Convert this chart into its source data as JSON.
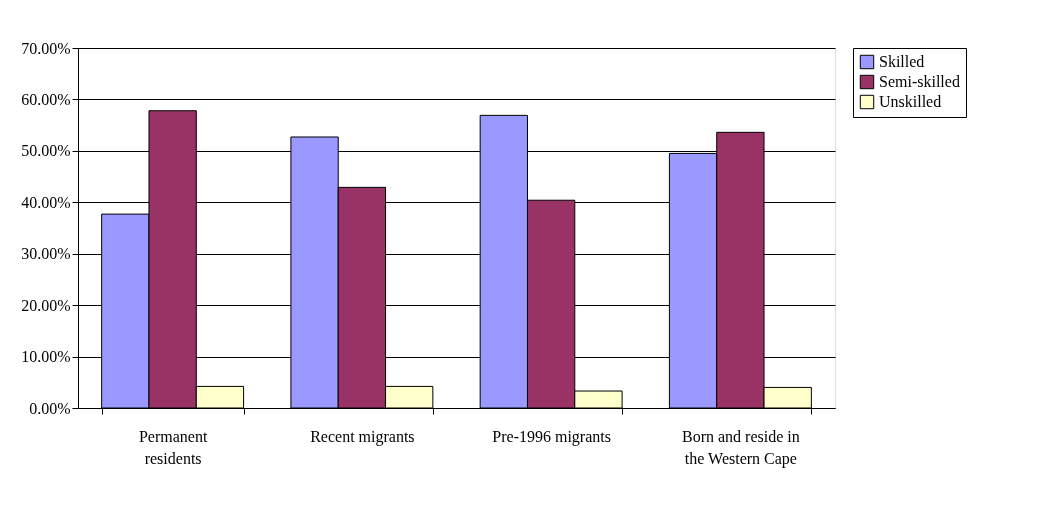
{
  "chart_data": {
    "type": "bar",
    "categories": [
      "Permanent residents",
      "Recent migrants",
      "Pre-1996 migrants",
      "Born and reside in the Western Cape"
    ],
    "series": [
      {
        "name": "Skilled",
        "color": "#9999ff",
        "values": [
          37.7,
          52.7,
          56.9,
          49.5
        ]
      },
      {
        "name": "Semi-skilled",
        "color": "#993366",
        "values": [
          57.8,
          42.9,
          40.4,
          53.6
        ]
      },
      {
        "name": "Unskilled",
        "color": "#ffffcc",
        "values": [
          4.2,
          4.2,
          3.3,
          4.0
        ]
      }
    ],
    "ylim": [
      0,
      70
    ],
    "yticks": [
      {
        "value": 0,
        "label": "0.00%"
      },
      {
        "value": 10,
        "label": "10.00%"
      },
      {
        "value": 20,
        "label": "20.00%"
      },
      {
        "value": 30,
        "label": "30.00%"
      },
      {
        "value": 40,
        "label": "40.00%"
      },
      {
        "value": 50,
        "label": "50.00%"
      },
      {
        "value": 60,
        "label": "60.00%"
      },
      {
        "value": 70,
        "label": "70.00%"
      }
    ],
    "grid": "y",
    "legend": "right"
  }
}
